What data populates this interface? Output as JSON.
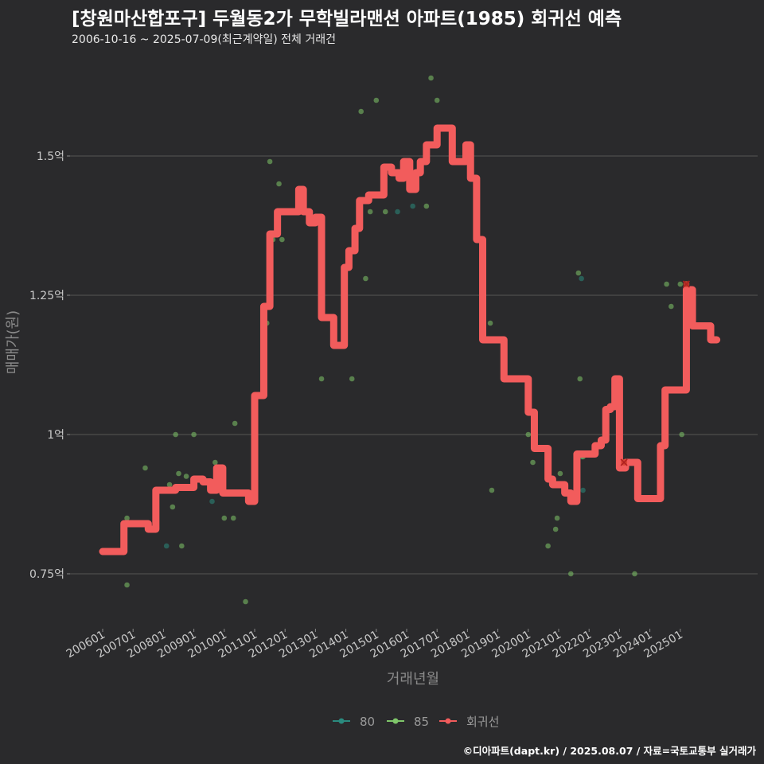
{
  "header": {
    "title": "[창원마산합포구] 두월동2가 무학빌라맨션 아파트(1985) 회귀선 예측",
    "subtitle": "2006-10-16 ~ 2025-07-09(최근계약일) 전체 거래건",
    "credit": "©디아파트(dapt.kr) / 2025.08.07 / 자료=국토교통부 실거래가"
  },
  "colors": {
    "background": "#2a2a2c",
    "grid": "#555555",
    "series_80": "#2a8a7e",
    "series_85": "#7fc66a",
    "regression": "#f25c5c"
  },
  "chart_data": {
    "type": "scatter",
    "title": "[창원마산합포구] 두월동2가 무학빌라맨션 아파트(1985) 회귀선 예측",
    "xlabel": "거래년월",
    "ylabel": "매매가(원)",
    "x_unit": "year (decimal)",
    "xlim": [
      2006.0,
      2026.0
    ],
    "ylim": [
      0.665,
      1.72
    ],
    "y_unit": "억",
    "y_ticks": [
      {
        "value": 0.75,
        "label": "0.75억"
      },
      {
        "value": 1.0,
        "label": "1억"
      },
      {
        "value": 1.25,
        "label": "1.25억"
      },
      {
        "value": 1.5,
        "label": "1.5억"
      }
    ],
    "x_ticks": [
      {
        "value": 2006.0,
        "label": "200601"
      },
      {
        "value": 2007.0,
        "label": "200701"
      },
      {
        "value": 2008.0,
        "label": "200801"
      },
      {
        "value": 2009.0,
        "label": "200901"
      },
      {
        "value": 2010.0,
        "label": "201001"
      },
      {
        "value": 2011.0,
        "label": "201101"
      },
      {
        "value": 2012.0,
        "label": "201201"
      },
      {
        "value": 2013.0,
        "label": "201301"
      },
      {
        "value": 2014.0,
        "label": "201401"
      },
      {
        "value": 2015.0,
        "label": "201501"
      },
      {
        "value": 2016.0,
        "label": "201601"
      },
      {
        "value": 2017.0,
        "label": "201701"
      },
      {
        "value": 2018.0,
        "label": "201801"
      },
      {
        "value": 2019.0,
        "label": "201901"
      },
      {
        "value": 2020.0,
        "label": "202001"
      },
      {
        "value": 2021.0,
        "label": "202101"
      },
      {
        "value": 2022.0,
        "label": "202201"
      },
      {
        "value": 2023.0,
        "label": "202301"
      },
      {
        "value": 2024.0,
        "label": "202401"
      },
      {
        "value": 2025.0,
        "label": "202501"
      }
    ],
    "legend": [
      {
        "name": "80",
        "color": "#2a8a7e"
      },
      {
        "name": "85",
        "color": "#7fc66a"
      },
      {
        "name": "회귀선",
        "color": "#f25c5c"
      }
    ],
    "legend_position": "bottom",
    "series": [
      {
        "name": "80",
        "kind": "points",
        "points": [
          [
            2008.1,
            0.8
          ],
          [
            2009.6,
            0.88
          ],
          [
            2015.7,
            1.4
          ],
          [
            2016.2,
            1.41
          ],
          [
            2021.75,
            1.28
          ],
          [
            2021.75,
            0.96
          ],
          [
            2021.8,
            0.9
          ]
        ]
      },
      {
        "name": "85",
        "kind": "points",
        "points": [
          [
            2006.8,
            0.85
          ],
          [
            2006.8,
            0.73
          ],
          [
            2007.4,
            0.94
          ],
          [
            2008.2,
            0.91
          ],
          [
            2008.3,
            0.87
          ],
          [
            2008.4,
            1.0
          ],
          [
            2008.5,
            0.93
          ],
          [
            2008.6,
            0.8
          ],
          [
            2008.75,
            0.925
          ],
          [
            2009.0,
            1.0
          ],
          [
            2009.7,
            0.95
          ],
          [
            2010.0,
            0.85
          ],
          [
            2010.3,
            0.85
          ],
          [
            2010.35,
            1.02
          ],
          [
            2010.7,
            0.7
          ],
          [
            2011.4,
            1.2
          ],
          [
            2011.5,
            1.49
          ],
          [
            2011.6,
            1.35
          ],
          [
            2011.8,
            1.45
          ],
          [
            2011.9,
            1.35
          ],
          [
            2013.2,
            1.1
          ],
          [
            2014.2,
            1.1
          ],
          [
            2014.5,
            1.58
          ],
          [
            2014.65,
            1.28
          ],
          [
            2014.8,
            1.4
          ],
          [
            2015.0,
            1.6
          ],
          [
            2015.3,
            1.4
          ],
          [
            2016.65,
            1.41
          ],
          [
            2016.8,
            1.64
          ],
          [
            2017.0,
            1.6
          ],
          [
            2018.75,
            1.2
          ],
          [
            2018.8,
            0.9
          ],
          [
            2020.0,
            1.0
          ],
          [
            2020.15,
            0.95
          ],
          [
            2020.65,
            0.8
          ],
          [
            2020.9,
            0.83
          ],
          [
            2020.95,
            0.85
          ],
          [
            2021.4,
            0.75
          ],
          [
            2021.65,
            1.29
          ],
          [
            2021.7,
            1.1
          ],
          [
            2021.05,
            0.93
          ],
          [
            2021.8,
            0.96
          ],
          [
            2023.5,
            0.75
          ],
          [
            2024.55,
            1.27
          ],
          [
            2024.7,
            1.23
          ],
          [
            2025.0,
            1.27
          ],
          [
            2025.05,
            1.0
          ]
        ]
      },
      {
        "name": "회귀선",
        "kind": "line",
        "points": [
          [
            2006.0,
            0.79
          ],
          [
            2006.55,
            0.79
          ],
          [
            2006.7,
            0.84
          ],
          [
            2007.2,
            0.84
          ],
          [
            2007.5,
            0.83
          ],
          [
            2007.75,
            0.9
          ],
          [
            2008.0,
            0.9
          ],
          [
            2008.4,
            0.905
          ],
          [
            2008.8,
            0.905
          ],
          [
            2009.0,
            0.92
          ],
          [
            2009.3,
            0.915
          ],
          [
            2009.55,
            0.9
          ],
          [
            2009.75,
            0.94
          ],
          [
            2009.95,
            0.895
          ],
          [
            2010.2,
            0.895
          ],
          [
            2010.5,
            0.895
          ],
          [
            2010.8,
            0.88
          ],
          [
            2011.0,
            1.07
          ],
          [
            2011.3,
            1.23
          ],
          [
            2011.5,
            1.36
          ],
          [
            2011.75,
            1.4
          ],
          [
            2012.0,
            1.4
          ],
          [
            2012.3,
            1.4
          ],
          [
            2012.45,
            1.44
          ],
          [
            2012.6,
            1.4
          ],
          [
            2012.8,
            1.38
          ],
          [
            2013.0,
            1.39
          ],
          [
            2013.2,
            1.21
          ],
          [
            2013.45,
            1.21
          ],
          [
            2013.6,
            1.16
          ],
          [
            2013.8,
            1.16
          ],
          [
            2013.95,
            1.3
          ],
          [
            2014.1,
            1.33
          ],
          [
            2014.3,
            1.37
          ],
          [
            2014.45,
            1.42
          ],
          [
            2014.6,
            1.42
          ],
          [
            2014.75,
            1.43
          ],
          [
            2015.0,
            1.43
          ],
          [
            2015.25,
            1.48
          ],
          [
            2015.5,
            1.47
          ],
          [
            2015.75,
            1.46
          ],
          [
            2015.9,
            1.49
          ],
          [
            2016.1,
            1.44
          ],
          [
            2016.3,
            1.47
          ],
          [
            2016.45,
            1.49
          ],
          [
            2016.65,
            1.52
          ],
          [
            2016.8,
            1.52
          ],
          [
            2017.0,
            1.55
          ],
          [
            2017.3,
            1.55
          ],
          [
            2017.5,
            1.49
          ],
          [
            2017.75,
            1.49
          ],
          [
            2017.95,
            1.52
          ],
          [
            2018.1,
            1.46
          ],
          [
            2018.3,
            1.35
          ],
          [
            2018.5,
            1.17
          ],
          [
            2018.75,
            1.17
          ],
          [
            2019.0,
            1.17
          ],
          [
            2019.2,
            1.1
          ],
          [
            2019.5,
            1.1
          ],
          [
            2019.75,
            1.1
          ],
          [
            2020.0,
            1.04
          ],
          [
            2020.2,
            0.975
          ],
          [
            2020.35,
            0.975
          ],
          [
            2020.5,
            0.975
          ],
          [
            2020.65,
            0.92
          ],
          [
            2020.8,
            0.91
          ],
          [
            2021.0,
            0.91
          ],
          [
            2021.2,
            0.895
          ],
          [
            2021.4,
            0.88
          ],
          [
            2021.6,
            0.965
          ],
          [
            2021.75,
            0.965
          ],
          [
            2022.0,
            0.965
          ],
          [
            2022.2,
            0.98
          ],
          [
            2022.4,
            0.99
          ],
          [
            2022.55,
            1.045
          ],
          [
            2022.7,
            1.05
          ],
          [
            2022.85,
            1.1
          ],
          [
            2023.0,
            0.94
          ],
          [
            2023.2,
            0.95
          ],
          [
            2023.5,
            0.95
          ],
          [
            2023.6,
            0.885
          ],
          [
            2024.0,
            0.885
          ],
          [
            2024.2,
            0.885
          ],
          [
            2024.35,
            0.98
          ],
          [
            2024.5,
            1.08
          ],
          [
            2024.75,
            1.08
          ],
          [
            2025.0,
            1.08
          ],
          [
            2025.2,
            1.26
          ],
          [
            2025.4,
            1.195
          ],
          [
            2025.6,
            1.195
          ],
          [
            2025.8,
            1.195
          ],
          [
            2026.0,
            1.17
          ],
          [
            2026.2,
            1.17
          ]
        ]
      }
    ],
    "markers": [
      {
        "x": 2023.15,
        "y": 0.95,
        "shape": "x"
      },
      {
        "x": 2025.2,
        "y": 1.27,
        "shape": "x"
      }
    ]
  }
}
